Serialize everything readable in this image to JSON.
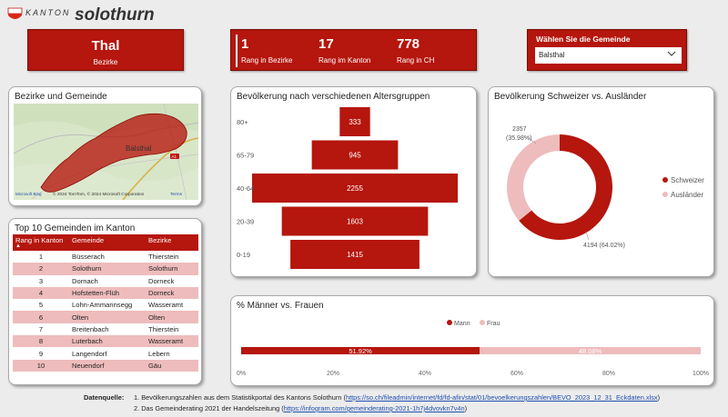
{
  "header": {
    "logo_kanton": "KANTON",
    "logo_name": "solothurn"
  },
  "district_card": {
    "name": "Thal",
    "label": "Bezirke"
  },
  "rank_card": {
    "items": [
      {
        "value": "1",
        "label": "Rang in Bezirke"
      },
      {
        "value": "17",
        "label": "Rang im Kanton"
      },
      {
        "value": "778",
        "label": "Rang in CH"
      }
    ]
  },
  "municipality_select": {
    "title": "Wählen Sie die Gemeinde",
    "selected": "Balsthal"
  },
  "map_panel": {
    "title": "Bezirke und Gemeinde",
    "place_label": "Balsthal",
    "road_label": "A1",
    "attribution": "© 2024 TomTom, © 2024 Microsoft Corporation",
    "terms": "Terms",
    "brand": "Microsoft Bing"
  },
  "top10": {
    "title": "Top 10 Gemeinden im Kanton",
    "columns": [
      "Rang in Kanton",
      "Gemeinde",
      "Bezirke"
    ],
    "rows": [
      [
        "1",
        "Büsserach",
        "Thierstein"
      ],
      [
        "2",
        "Solothurn",
        "Solothurn"
      ],
      [
        "3",
        "Dornach",
        "Dorneck"
      ],
      [
        "4",
        "Hofstetten-Flüh",
        "Dorneck"
      ],
      [
        "5",
        "Lohn-Ammannsegg",
        "Wasseramt"
      ],
      [
        "6",
        "Olten",
        "Olten"
      ],
      [
        "7",
        "Breitenbach",
        "Thierstein"
      ],
      [
        "8",
        "Luterbach",
        "Wasseramt"
      ],
      [
        "9",
        "Langendorf",
        "Lebern"
      ],
      [
        "10",
        "Neuendorf",
        "Gäu"
      ]
    ]
  },
  "age_panel": {
    "title": "Bevölkerung nach verschiedenen Altersgruppen"
  },
  "ratio_panel": {
    "title": "Bevölkerung Schweizer vs. Ausländer"
  },
  "gender_panel": {
    "title": "% Männer vs. Frauen"
  },
  "colors": {
    "accent": "#b5160d",
    "light": "#eebcbc"
  },
  "chart_data": [
    {
      "type": "bar",
      "orientation": "horizontal-centered",
      "categories": [
        "80+",
        "65-79",
        "40-64",
        "20-39",
        "0-19"
      ],
      "values": [
        333,
        945,
        2255,
        1603,
        1415
      ]
    },
    {
      "type": "pie",
      "variant": "donut",
      "legend": "right",
      "slices": [
        {
          "name": "Schweizer",
          "value": 4194,
          "label": "4194 (64.02%)",
          "color": "#b5160d"
        },
        {
          "name": "Ausländer",
          "value": 2357,
          "label_value": "2357",
          "label_pct": "(35.98%)",
          "color": "#eebcbc"
        }
      ]
    },
    {
      "type": "bar",
      "orientation": "horizontal-stacked-100",
      "legend": "top",
      "series": [
        {
          "name": "Mann",
          "value": 51.92,
          "label": "51.92%",
          "color": "#b5160d"
        },
        {
          "name": "Frau",
          "value": 48.08,
          "label": "48.08%",
          "color": "#eebcbc"
        }
      ],
      "x_ticks": [
        "0%",
        "20%",
        "40%",
        "60%",
        "80%",
        "100%"
      ],
      "xlim": [
        0,
        100
      ]
    }
  ],
  "footer": {
    "label": "Datenquelle:",
    "line1_text": "1. Bevölkerungszahlen aus dem Statistikportal des Kantons Solothurn (",
    "line1_link": "https://so.ch/fileadmin/internet/fd/fd-afin/stat/01/bevoelkerungszahlen/BEVO_2023_12_31_Eckdaten.xlsx",
    "line1_end": ")",
    "line2_text": "2. Das Gemeinderating 2021 der Handelszeitung (",
    "line2_link": "https://infogram.com/gemeinderating-2021-1h7j4dvovkn7v4n",
    "line2_end": ")"
  }
}
